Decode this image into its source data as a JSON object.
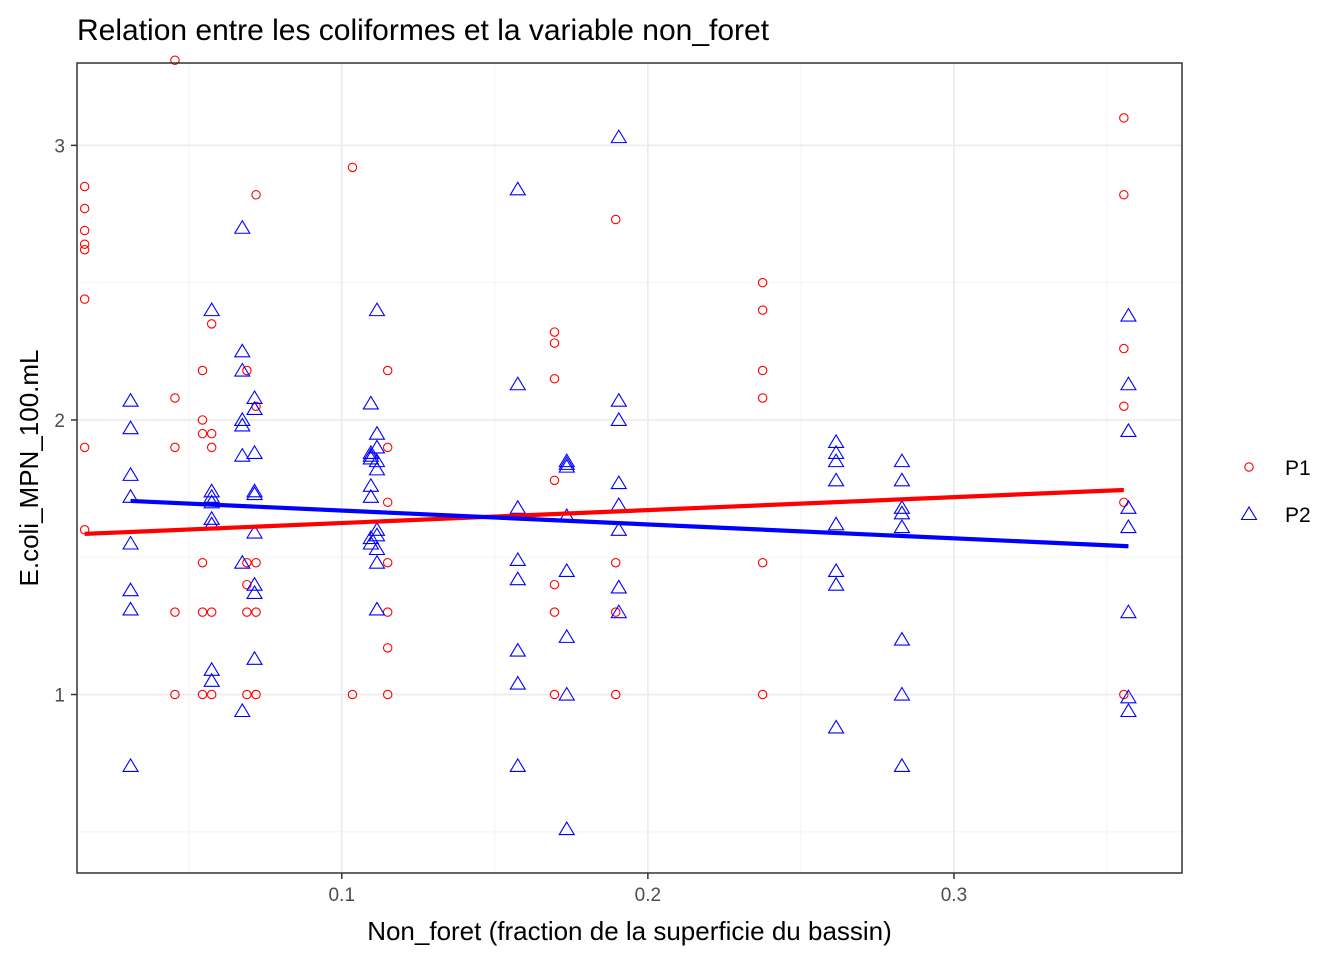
{
  "chart_data": {
    "type": "scatter",
    "title": "Relation entre les coliformes et la variable non_foret",
    "xlabel": "Non_foret (fraction de la superficie du bassin)",
    "ylabel": "E.coli_MPN_100.mL",
    "x_ticks": [
      0.1,
      0.2,
      0.3
    ],
    "x_tick_labels": [
      "0.1",
      "0.2",
      "0.3"
    ],
    "y_ticks": [
      1,
      2,
      3
    ],
    "y_tick_labels": [
      "1",
      "2",
      "3"
    ],
    "xlim": [
      0.0135,
      0.3745
    ],
    "ylim": [
      0.35,
      3.3
    ],
    "grid": true,
    "legend_position": "right",
    "series": [
      {
        "name": "P1",
        "color": "#ff0000",
        "marker": "circle",
        "points": [
          [
            0.016,
            2.85
          ],
          [
            0.016,
            2.77
          ],
          [
            0.016,
            2.69
          ],
          [
            0.016,
            2.64
          ],
          [
            0.016,
            2.62
          ],
          [
            0.016,
            2.44
          ],
          [
            0.016,
            1.9
          ],
          [
            0.016,
            1.6
          ],
          [
            0.0455,
            3.31
          ],
          [
            0.0455,
            2.08
          ],
          [
            0.0455,
            1.9
          ],
          [
            0.0455,
            1.3
          ],
          [
            0.0455,
            1.0
          ],
          [
            0.0545,
            2.18
          ],
          [
            0.0545,
            2.0
          ],
          [
            0.0545,
            1.95
          ],
          [
            0.0545,
            1.48
          ],
          [
            0.0545,
            1.3
          ],
          [
            0.0545,
            1.0
          ],
          [
            0.0575,
            2.35
          ],
          [
            0.0575,
            1.95
          ],
          [
            0.0575,
            1.9
          ],
          [
            0.0575,
            1.3
          ],
          [
            0.0575,
            1.0
          ],
          [
            0.069,
            2.18
          ],
          [
            0.069,
            1.48
          ],
          [
            0.069,
            1.4
          ],
          [
            0.069,
            1.3
          ],
          [
            0.069,
            1.0
          ],
          [
            0.072,
            2.05
          ],
          [
            0.072,
            1.48
          ],
          [
            0.072,
            1.3
          ],
          [
            0.072,
            1.0
          ],
          [
            0.072,
            2.82
          ],
          [
            0.1035,
            2.92
          ],
          [
            0.1035,
            1.0
          ],
          [
            0.115,
            2.18
          ],
          [
            0.115,
            1.9
          ],
          [
            0.115,
            1.7
          ],
          [
            0.115,
            1.48
          ],
          [
            0.115,
            1.3
          ],
          [
            0.115,
            1.17
          ],
          [
            0.115,
            1.0
          ],
          [
            0.1695,
            2.32
          ],
          [
            0.1695,
            2.28
          ],
          [
            0.1695,
            2.15
          ],
          [
            0.1695,
            1.78
          ],
          [
            0.1695,
            1.4
          ],
          [
            0.1695,
            1.3
          ],
          [
            0.1695,
            1.0
          ],
          [
            0.1895,
            2.73
          ],
          [
            0.1895,
            1.48
          ],
          [
            0.1895,
            1.3
          ],
          [
            0.1895,
            1.0
          ],
          [
            0.2375,
            2.5
          ],
          [
            0.2375,
            2.4
          ],
          [
            0.2375,
            2.18
          ],
          [
            0.2375,
            2.08
          ],
          [
            0.2375,
            1.48
          ],
          [
            0.2375,
            1.0
          ],
          [
            0.3555,
            3.1
          ],
          [
            0.3555,
            2.82
          ],
          [
            0.3555,
            2.26
          ],
          [
            0.3555,
            2.05
          ],
          [
            0.3555,
            1.7
          ],
          [
            0.3555,
            1.0
          ]
        ],
        "fit": [
          [
            0.016,
            1.585
          ],
          [
            0.3555,
            1.745
          ]
        ]
      },
      {
        "name": "P2",
        "color": "#0000ff",
        "marker": "triangle",
        "points": [
          [
            0.031,
            2.07
          ],
          [
            0.031,
            1.97
          ],
          [
            0.031,
            1.8
          ],
          [
            0.031,
            1.72
          ],
          [
            0.031,
            1.55
          ],
          [
            0.031,
            1.38
          ],
          [
            0.031,
            1.31
          ],
          [
            0.031,
            0.74
          ],
          [
            0.0575,
            2.4
          ],
          [
            0.0575,
            1.74
          ],
          [
            0.0575,
            1.72
          ],
          [
            0.0575,
            1.7
          ],
          [
            0.0575,
            1.64
          ],
          [
            0.0575,
            1.62
          ],
          [
            0.0575,
            1.09
          ],
          [
            0.0575,
            1.05
          ],
          [
            0.0675,
            2.7
          ],
          [
            0.0675,
            2.25
          ],
          [
            0.0675,
            2.18
          ],
          [
            0.0675,
            2.0
          ],
          [
            0.0675,
            1.98
          ],
          [
            0.0675,
            1.87
          ],
          [
            0.0675,
            1.48
          ],
          [
            0.0675,
            0.94
          ],
          [
            0.0715,
            2.08
          ],
          [
            0.0715,
            2.04
          ],
          [
            0.0715,
            1.88
          ],
          [
            0.0715,
            1.74
          ],
          [
            0.0715,
            1.73
          ],
          [
            0.0715,
            1.59
          ],
          [
            0.0715,
            1.4
          ],
          [
            0.0715,
            1.37
          ],
          [
            0.0715,
            1.13
          ],
          [
            0.1095,
            2.06
          ],
          [
            0.1095,
            1.88
          ],
          [
            0.1095,
            1.87
          ],
          [
            0.1095,
            1.86
          ],
          [
            0.1095,
            1.76
          ],
          [
            0.1095,
            1.72
          ],
          [
            0.1095,
            1.57
          ],
          [
            0.1095,
            1.55
          ],
          [
            0.1115,
            2.4
          ],
          [
            0.1115,
            1.95
          ],
          [
            0.1115,
            1.9
          ],
          [
            0.1115,
            1.85
          ],
          [
            0.1115,
            1.82
          ],
          [
            0.1115,
            1.6
          ],
          [
            0.1115,
            1.58
          ],
          [
            0.1115,
            1.53
          ],
          [
            0.1115,
            1.48
          ],
          [
            0.1115,
            1.31
          ],
          [
            0.1575,
            2.84
          ],
          [
            0.1575,
            2.13
          ],
          [
            0.1575,
            1.68
          ],
          [
            0.1575,
            1.49
          ],
          [
            0.1575,
            1.42
          ],
          [
            0.1575,
            1.16
          ],
          [
            0.1575,
            1.04
          ],
          [
            0.1575,
            0.74
          ],
          [
            0.1735,
            1.85
          ],
          [
            0.1735,
            1.84
          ],
          [
            0.1735,
            1.83
          ],
          [
            0.1735,
            1.65
          ],
          [
            0.1735,
            1.45
          ],
          [
            0.1735,
            1.21
          ],
          [
            0.1735,
            1.0
          ],
          [
            0.1735,
            0.51
          ],
          [
            0.1905,
            3.03
          ],
          [
            0.1905,
            2.07
          ],
          [
            0.1905,
            2.0
          ],
          [
            0.1905,
            1.77
          ],
          [
            0.1905,
            1.69
          ],
          [
            0.1905,
            1.6
          ],
          [
            0.1905,
            1.39
          ],
          [
            0.1905,
            1.3
          ],
          [
            0.2615,
            1.92
          ],
          [
            0.2615,
            1.88
          ],
          [
            0.2615,
            1.85
          ],
          [
            0.2615,
            1.78
          ],
          [
            0.2615,
            1.62
          ],
          [
            0.2615,
            1.45
          ],
          [
            0.2615,
            1.4
          ],
          [
            0.2615,
            0.88
          ],
          [
            0.283,
            1.85
          ],
          [
            0.283,
            1.78
          ],
          [
            0.283,
            1.68
          ],
          [
            0.283,
            1.66
          ],
          [
            0.283,
            1.61
          ],
          [
            0.283,
            1.2
          ],
          [
            0.283,
            1.0
          ],
          [
            0.283,
            0.74
          ],
          [
            0.357,
            2.38
          ],
          [
            0.357,
            2.13
          ],
          [
            0.357,
            1.96
          ],
          [
            0.357,
            1.68
          ],
          [
            0.357,
            1.61
          ],
          [
            0.357,
            1.3
          ],
          [
            0.357,
            0.99
          ],
          [
            0.357,
            0.94
          ]
        ],
        "fit": [
          [
            0.031,
            1.705
          ],
          [
            0.357,
            1.54
          ]
        ]
      }
    ]
  }
}
